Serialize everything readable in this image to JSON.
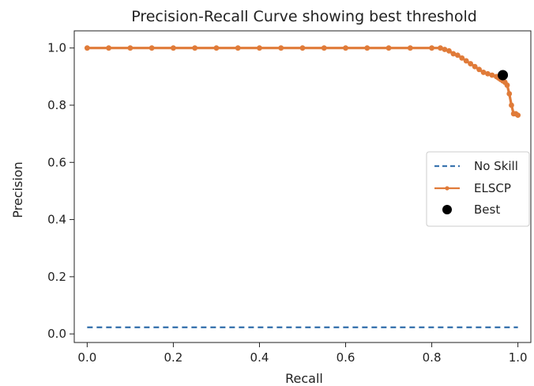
{
  "chart_data": {
    "type": "line",
    "title": "Precision-Recall Curve showing best threshold",
    "xlabel": "Recall",
    "ylabel": "Precision",
    "xlim": [
      -0.03,
      1.03
    ],
    "ylim": [
      -0.03,
      1.06
    ],
    "xticks": [
      "0.0",
      "0.2",
      "0.4",
      "0.6",
      "0.8",
      "1.0"
    ],
    "yticks": [
      "0.0",
      "0.2",
      "0.4",
      "0.6",
      "0.8",
      "1.0"
    ],
    "grid": false,
    "legend_position": "center-right",
    "series": [
      {
        "name": "No Skill",
        "style": "dashed",
        "color": "#3b75af",
        "x": [
          0.0,
          1.0
        ],
        "y": [
          0.023,
          0.023
        ]
      },
      {
        "name": "ELSCP",
        "style": "line-with-markers",
        "color": "#e07b39",
        "x": [
          0.0,
          0.05,
          0.1,
          0.15,
          0.2,
          0.25,
          0.3,
          0.35,
          0.4,
          0.45,
          0.5,
          0.55,
          0.6,
          0.65,
          0.7,
          0.75,
          0.8,
          0.82,
          0.83,
          0.84,
          0.85,
          0.86,
          0.87,
          0.88,
          0.89,
          0.9,
          0.91,
          0.92,
          0.93,
          0.94,
          0.95,
          0.955,
          0.96,
          0.965,
          0.97,
          0.975,
          0.98,
          0.985,
          0.99,
          0.995,
          1.0
        ],
        "y": [
          1.0,
          1.0,
          1.0,
          1.0,
          1.0,
          1.0,
          1.0,
          1.0,
          1.0,
          1.0,
          1.0,
          1.0,
          1.0,
          1.0,
          1.0,
          1.0,
          1.0,
          1.0,
          0.995,
          0.99,
          0.98,
          0.975,
          0.965,
          0.955,
          0.945,
          0.935,
          0.925,
          0.915,
          0.91,
          0.905,
          0.9,
          0.895,
          0.89,
          0.885,
          0.88,
          0.87,
          0.84,
          0.8,
          0.77,
          0.77,
          0.765
        ]
      },
      {
        "name": "Best",
        "style": "marker",
        "color": "#000000",
        "x": [
          0.965
        ],
        "y": [
          0.905
        ]
      }
    ]
  }
}
